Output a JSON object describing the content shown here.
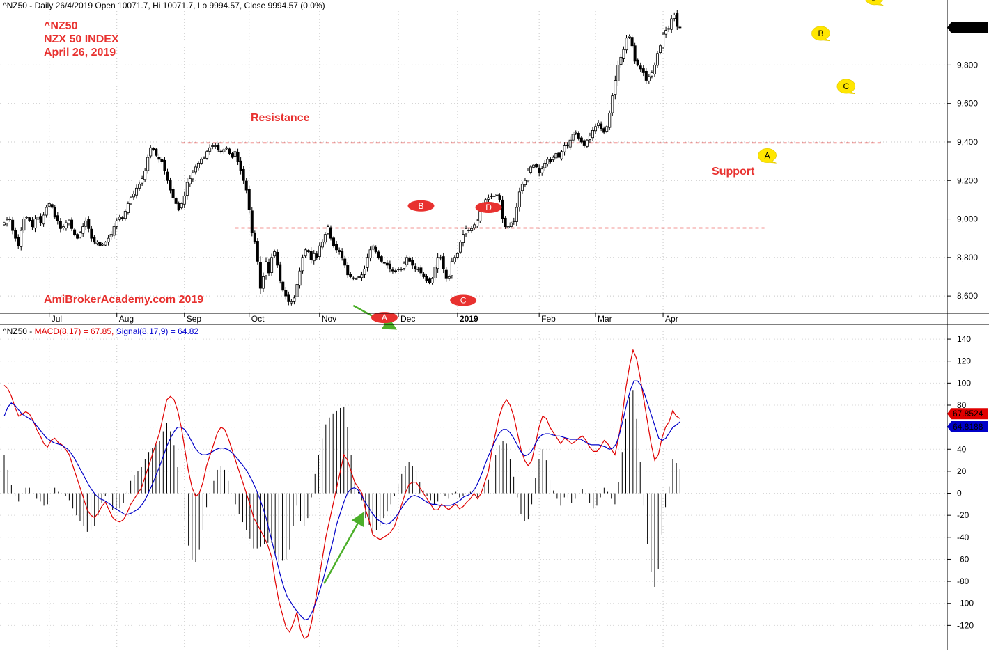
{
  "price_header": "^NZ50 - Daily 26/4/2019 Open 10071.7, Hi 10071.7, Lo 9994.57, Close 9994.57 (0.0%)",
  "macd_header": {
    "prefix": "^NZ50 - ",
    "macd": "MACD(8,17) = 67.85,",
    "signal": "Signal(8,17,9) = 64.82"
  },
  "title_lines": [
    "^NZ50",
    "NZX 50 INDEX",
    "April 26, 2019"
  ],
  "annotations": {
    "resistance": "Resistance",
    "support": "Support",
    "watermark": "AmiBrokerAcademy.com  2019"
  },
  "colors": {
    "candle": "#000000",
    "macd_line": "#e00000",
    "signal_line": "#0000c8",
    "level_line": "#e8312f",
    "red_marker": "#e8312f",
    "yellow_marker": "#ffe600",
    "arrow": "#4caf2a"
  },
  "chart_data": [
    {
      "type": "candlestick",
      "title": "NZX 50 INDEX",
      "ylim": [
        8510,
        10080
      ],
      "y_ticks": [
        8600,
        8800,
        9000,
        9200,
        9400,
        9600,
        9800
      ],
      "x_ticks": [
        {
          "label": "Jul",
          "bar": 16,
          "bold": false
        },
        {
          "label": "Aug",
          "bar": 40,
          "bold": false
        },
        {
          "label": "Sep",
          "bar": 64,
          "bold": false
        },
        {
          "label": "Oct",
          "bar": 87,
          "bold": false
        },
        {
          "label": "Nov",
          "bar": 112,
          "bold": false
        },
        {
          "label": "Dec",
          "bar": 140,
          "bold": false
        },
        {
          "label": "2019",
          "bar": 161,
          "bold": true
        },
        {
          "label": "Feb",
          "bar": 190,
          "bold": false
        },
        {
          "label": "Mar",
          "bar": 210,
          "bold": false
        },
        {
          "label": "Apr",
          "bar": 234,
          "bold": false
        }
      ],
      "last_close_label": "9,994.57",
      "closes": [
        8980,
        8995,
        9000,
        8940,
        8900,
        8860,
        8940,
        9000,
        9010,
        8990,
        8960,
        9000,
        9010,
        8980,
        9020,
        9060,
        9080,
        9060,
        9010,
        8990,
        8950,
        8960,
        8980,
        8990,
        8950,
        8920,
        8900,
        8930,
        8960,
        8990,
        8950,
        8900,
        8880,
        8880,
        8860,
        8870,
        8880,
        8900,
        8920,
        8960,
        8990,
        9010,
        9000,
        9040,
        9080,
        9110,
        9130,
        9160,
        9180,
        9210,
        9250,
        9320,
        9370,
        9360,
        9330,
        9310,
        9300,
        9250,
        9200,
        9150,
        9110,
        9080,
        9050,
        9080,
        9120,
        9190,
        9210,
        9240,
        9270,
        9290,
        9310,
        9320,
        9350,
        9370,
        9380,
        9380,
        9360,
        9350,
        9360,
        9370,
        9340,
        9320,
        9350,
        9300,
        9250,
        9200,
        9150,
        9050,
        8930,
        8880,
        8780,
        8640,
        8700,
        8780,
        8720,
        8800,
        8830,
        8760,
        8680,
        8630,
        8600,
        8570,
        8570,
        8590,
        8660,
        8730,
        8800,
        8840,
        8830,
        8790,
        8820,
        8800,
        8860,
        8880,
        8920,
        8960,
        8900,
        8860,
        8840,
        8830,
        8800,
        8760,
        8710,
        8700,
        8690,
        8690,
        8700,
        8710,
        8740,
        8800,
        8840,
        8860,
        8830,
        8800,
        8780,
        8770,
        8760,
        8740,
        8730,
        8730,
        8740,
        8740,
        8770,
        8800,
        8780,
        8760,
        8740,
        8740,
        8720,
        8700,
        8680,
        8670,
        8690,
        8750,
        8800,
        8800,
        8740,
        8690,
        8700,
        8780,
        8800,
        8820,
        8880,
        8920,
        8950,
        8940,
        8950,
        8970,
        8990,
        9040,
        9080,
        9100,
        9110,
        9120,
        9120,
        9130,
        9100,
        9000,
        8960,
        8960,
        8980,
        8990,
        9060,
        9140,
        9180,
        9200,
        9250,
        9270,
        9280,
        9270,
        9240,
        9260,
        9290,
        9310,
        9300,
        9320,
        9340,
        9320,
        9350,
        9380,
        9380,
        9410,
        9440,
        9450,
        9420,
        9400,
        9380,
        9410,
        9430,
        9460,
        9480,
        9500,
        9470,
        9450,
        9480,
        9550,
        9640,
        9720,
        9800,
        9840,
        9880,
        9940,
        9950,
        9900,
        9820,
        9800,
        9780,
        9760,
        9720,
        9740,
        9760,
        9800,
        9860,
        9900,
        9960,
        9980,
        9990,
        10040,
        10060,
        10000,
        9994.57
      ],
      "levels": [
        {
          "name": "resistance",
          "value": 9395,
          "from_bar": 63,
          "to_bar": 312
        },
        {
          "name": "lower-level",
          "value": 8953,
          "from_bar": 82,
          "to_bar": 270
        }
      ],
      "markers": [
        {
          "label": "A",
          "color": "red",
          "bar": 138,
          "price": 8488
        },
        {
          "label": "B",
          "color": "red",
          "bar": 151,
          "price": 9068
        },
        {
          "label": "C",
          "color": "red",
          "bar": 166,
          "price": 8577
        },
        {
          "label": "D",
          "color": "red",
          "bar": 175,
          "price": 9060
        },
        {
          "label": "A",
          "color": "yellow",
          "bar": 271,
          "price": 9330
        },
        {
          "label": "B",
          "color": "yellow",
          "bar": 290,
          "price": 9965
        },
        {
          "label": "C",
          "color": "yellow",
          "bar": 299,
          "price": 9690
        },
        {
          "label": "D",
          "color": "yellow",
          "bar": 309,
          "price": 10150
        }
      ]
    },
    {
      "type": "line",
      "title": "MACD(8,17) Signal(8,17,9)",
      "ylim": [
        -140,
        147
      ],
      "y_ticks": [
        -120,
        -100,
        -80,
        -60,
        -40,
        -20,
        0,
        20,
        40,
        60,
        80,
        100,
        120,
        140
      ],
      "series": [
        {
          "name": "MACD(8,17)",
          "color": "#e00000",
          "last_label": "67.8524",
          "values": [
            98,
            95,
            88,
            78,
            70,
            72,
            74,
            72,
            66,
            58,
            52,
            45,
            42,
            48,
            50,
            46,
            44,
            40,
            35,
            25,
            15,
            5,
            -5,
            -15,
            -20,
            -22,
            -18,
            -12,
            -8,
            -15,
            -22,
            -25,
            -26,
            -24,
            -18,
            -10,
            -5,
            0,
            5,
            15,
            25,
            35,
            45,
            55,
            70,
            85,
            88,
            85,
            75,
            60,
            40,
            20,
            5,
            -3,
            0,
            10,
            25,
            35,
            45,
            55,
            60,
            58,
            50,
            40,
            30,
            20,
            10,
            0,
            -10,
            -22,
            -28,
            -34,
            -40,
            -48,
            -58,
            -80,
            -98,
            -110,
            -122,
            -126,
            -118,
            -108,
            -124,
            -132,
            -130,
            -118,
            -100,
            -80,
            -60,
            -40,
            -25,
            -10,
            5,
            20,
            35,
            30,
            20,
            10,
            5,
            0,
            -15,
            -25,
            -38,
            -40,
            -42,
            -40,
            -38,
            -35,
            -30,
            -20,
            -10,
            0,
            8,
            10,
            10,
            5,
            0,
            -5,
            -10,
            -15,
            -15,
            -10,
            -12,
            -15,
            -12,
            -10,
            -14,
            -12,
            -8,
            -5,
            0,
            -5,
            0,
            10,
            20,
            40,
            55,
            70,
            80,
            85,
            80,
            70,
            55,
            40,
            30,
            25,
            30,
            45,
            60,
            70,
            68,
            60,
            55,
            50,
            45,
            50,
            48,
            45,
            47,
            50,
            52,
            48,
            42,
            38,
            38,
            42,
            48,
            45,
            40,
            35,
            50,
            70,
            95,
            115,
            130,
            122,
            105,
            85,
            65,
            45,
            30,
            35,
            50,
            60,
            65,
            75,
            70,
            67.85
          ]
        },
        {
          "name": "Signal(8,17,9)",
          "color": "#0000c8",
          "last_label": "64.8188",
          "values": [
            70,
            78,
            82,
            80,
            76,
            72,
            70,
            68,
            66,
            62,
            58,
            54,
            50,
            48,
            46,
            45,
            44,
            42,
            40,
            36,
            31,
            25,
            19,
            13,
            7,
            2,
            -2,
            -5,
            -6,
            -8,
            -10,
            -13,
            -15,
            -17,
            -19,
            -19,
            -18,
            -16,
            -14,
            -10,
            -5,
            2,
            9,
            17,
            25,
            34,
            43,
            50,
            56,
            60,
            60,
            58,
            53,
            47,
            41,
            37,
            35,
            35,
            36,
            38,
            40,
            41,
            41,
            40,
            38,
            35,
            31,
            27,
            23,
            18,
            12,
            5,
            -3,
            -12,
            -22,
            -35,
            -48,
            -61,
            -74,
            -85,
            -94,
            -99,
            -104,
            -108,
            -112,
            -115,
            -114,
            -108,
            -100,
            -90,
            -80,
            -68,
            -55,
            -42,
            -28,
            -18,
            -8,
            0,
            4,
            5,
            3,
            -2,
            -8,
            -13,
            -18,
            -22,
            -25,
            -27,
            -28,
            -27,
            -24,
            -20,
            -15,
            -10,
            -6,
            -3,
            -2,
            -3,
            -5,
            -7,
            -9,
            -10,
            -10,
            -11,
            -11,
            -11,
            -11,
            -10,
            -8,
            -6,
            -3,
            -2,
            0,
            4,
            10,
            18,
            27,
            35,
            42,
            49,
            55,
            58,
            58,
            55,
            50,
            44,
            38,
            34,
            35,
            38,
            44,
            50,
            53,
            54,
            54,
            53,
            52,
            52,
            51,
            50,
            49,
            49,
            49,
            49,
            47,
            45,
            44,
            44,
            44,
            43,
            42,
            40,
            41,
            45,
            55,
            68,
            82,
            94,
            102,
            102,
            98,
            90,
            80,
            70,
            60,
            50,
            48,
            50,
            55,
            60,
            62,
            64.82
          ]
        }
      ],
      "histogram": {
        "name": "MACD - Signal",
        "color": "#000000"
      },
      "arrows": [
        {
          "from_bar": 123,
          "from_value": -82,
          "to_bar": 140,
          "to_value": -23
        }
      ]
    }
  ],
  "price_arrow": {
    "from_bar": 122,
    "from_price": 8550,
    "to_bar": 140,
    "to_price": 8480
  }
}
